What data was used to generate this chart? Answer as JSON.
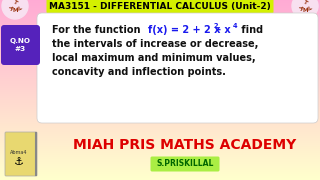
{
  "title": "MA3151 - DIFFERENTIAL CALCULUS (Unit-2)",
  "title_bg": "#d4f000",
  "title_color": "#000000",
  "title_fontsize": 6.5,
  "qno_text": "Q.NO\n#3",
  "qno_bg": "#5522bb",
  "qno_color": "#ffffff",
  "box_bg": "#ffffff",
  "box_text_color": "#111111",
  "function_color": "#1a1aee",
  "line1_pre": "For the function   ",
  "line1_func": "f(x) = 2 + 2 x",
  "line1_sup1": "2",
  "line1_mid": "- x",
  "line1_sup2": "4",
  "line1_end": "  find",
  "box_line2": "the intervals of increase or decrease,",
  "box_line3": "local maximum and minimum values,",
  "box_line4": "concavity and inflection points.",
  "bottom_text": "MIAH PRIS MATHS ACADEMY",
  "bottom_text_color": "#dd0000",
  "bottom_subtext": "S.PRISKILLAL",
  "bottom_subtext_color": "#006600",
  "bottom_subtext_bg": "#aaee44",
  "bg_top_color": "#ffaad4",
  "bg_bottom_color": "#ffffcc"
}
